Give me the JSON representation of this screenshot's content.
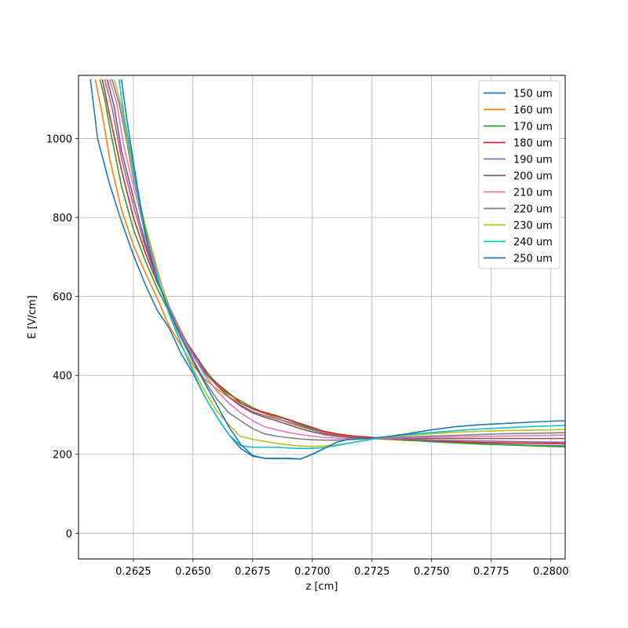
{
  "chart_data": {
    "type": "line",
    "title": "",
    "xlabel": "z [cm]",
    "ylabel": "E [V/cm]",
    "xlim": [
      0.2602,
      0.2806
    ],
    "ylim": [
      -65,
      1160
    ],
    "x_ticks": [
      {
        "value": 0.2625,
        "label": "0.2625"
      },
      {
        "value": 0.265,
        "label": "0.2650"
      },
      {
        "value": 0.2675,
        "label": "0.2675"
      },
      {
        "value": 0.27,
        "label": "0.2700"
      },
      {
        "value": 0.2725,
        "label": "0.2725"
      },
      {
        "value": 0.275,
        "label": "0.2750"
      },
      {
        "value": 0.2775,
        "label": "0.2775"
      },
      {
        "value": 0.28,
        "label": "0.2800"
      }
    ],
    "y_ticks": [
      {
        "value": 0,
        "label": "0"
      },
      {
        "value": 200,
        "label": "200"
      },
      {
        "value": 400,
        "label": "400"
      },
      {
        "value": 600,
        "label": "600"
      },
      {
        "value": 800,
        "label": "800"
      },
      {
        "value": 1000,
        "label": "1000"
      }
    ],
    "grid": true,
    "legend": "top-right",
    "series": [
      {
        "name": "150 um",
        "color": "#1f77b4",
        "x": [
          0.2607,
          0.261,
          0.2615,
          0.262,
          0.2625,
          0.263,
          0.2635,
          0.264,
          0.2645,
          0.265,
          0.2655,
          0.266,
          0.2665,
          0.267,
          0.2675,
          0.268,
          0.2685,
          0.269,
          0.2695,
          0.27,
          0.2705,
          0.271,
          0.2715,
          0.272,
          0.2725,
          0.273,
          0.2735,
          0.274,
          0.275,
          0.276,
          0.277,
          0.278,
          0.279,
          0.28,
          0.2806
        ],
        "y": [
          1150,
          1000,
          885,
          790,
          705,
          630,
          565,
          520,
          455,
          405,
          345,
          295,
          250,
          215,
          195,
          190,
          189,
          190,
          188,
          200,
          215,
          230,
          238,
          240,
          241,
          242,
          240,
          237,
          232,
          230,
          227,
          225,
          223,
          222,
          221
        ]
      },
      {
        "name": "160 um",
        "color": "#ff7f0e",
        "x": [
          0.2609,
          0.2612,
          0.2615,
          0.262,
          0.2625,
          0.263,
          0.2635,
          0.264,
          0.2645,
          0.265,
          0.2655,
          0.266,
          0.2665,
          0.267,
          0.2675,
          0.268,
          0.2685,
          0.269,
          0.2695,
          0.27,
          0.2705,
          0.271,
          0.2715,
          0.272,
          0.2725,
          0.273,
          0.274,
          0.275,
          0.276,
          0.277,
          0.278,
          0.279,
          0.28,
          0.2806
        ],
        "y": [
          1150,
          1060,
          950,
          820,
          730,
          660,
          595,
          525,
          475,
          425,
          390,
          365,
          345,
          330,
          315,
          303,
          292,
          280,
          270,
          262,
          255,
          250,
          245,
          242,
          240,
          238,
          235,
          233,
          231,
          230,
          229,
          228,
          227,
          226
        ]
      },
      {
        "name": "170 um",
        "color": "#2ca02c",
        "x": [
          0.2611,
          0.2613,
          0.2616,
          0.262,
          0.2625,
          0.263,
          0.2635,
          0.264,
          0.2645,
          0.265,
          0.2655,
          0.266,
          0.2665,
          0.267,
          0.2675,
          0.268,
          0.2685,
          0.269,
          0.2695,
          0.27,
          0.2705,
          0.271,
          0.2715,
          0.272,
          0.2725,
          0.273,
          0.274,
          0.275,
          0.276,
          0.277,
          0.278,
          0.279,
          0.28,
          0.2806
        ],
        "y": [
          1150,
          1100,
          1000,
          880,
          770,
          690,
          620,
          560,
          500,
          448,
          405,
          375,
          352,
          335,
          318,
          305,
          296,
          287,
          275,
          265,
          258,
          252,
          248,
          244,
          242,
          240,
          236,
          232,
          229,
          226,
          224,
          222,
          220,
          219
        ]
      },
      {
        "name": "180 um",
        "color": "#d62728",
        "x": [
          0.2612,
          0.2615,
          0.262,
          0.2625,
          0.263,
          0.2635,
          0.264,
          0.2645,
          0.265,
          0.2655,
          0.266,
          0.2665,
          0.267,
          0.2675,
          0.268,
          0.2685,
          0.269,
          0.2695,
          0.27,
          0.2705,
          0.271,
          0.2715,
          0.272,
          0.2725,
          0.273,
          0.274,
          0.275,
          0.276,
          0.277,
          0.278,
          0.279,
          0.28,
          0.2806
        ],
        "y": [
          1150,
          1060,
          920,
          800,
          710,
          635,
          575,
          510,
          455,
          410,
          380,
          355,
          330,
          315,
          306,
          298,
          288,
          278,
          268,
          258,
          252,
          248,
          245,
          243,
          241,
          238,
          235,
          232,
          230,
          229,
          228,
          228,
          227
        ]
      },
      {
        "name": "190 um",
        "color": "#9467bd",
        "x": [
          0.2613,
          0.2616,
          0.262,
          0.2625,
          0.263,
          0.2635,
          0.264,
          0.2645,
          0.265,
          0.2655,
          0.266,
          0.2665,
          0.267,
          0.2675,
          0.268,
          0.2685,
          0.269,
          0.2695,
          0.27,
          0.2705,
          0.271,
          0.2715,
          0.272,
          0.2725,
          0.273,
          0.274,
          0.275,
          0.276,
          0.277,
          0.278,
          0.279,
          0.28,
          0.2806
        ],
        "y": [
          1150,
          1080,
          950,
          830,
          725,
          640,
          565,
          505,
          455,
          412,
          375,
          345,
          325,
          308,
          298,
          290,
          282,
          272,
          262,
          253,
          248,
          244,
          241,
          240,
          239,
          238,
          236,
          235,
          234,
          233,
          232,
          231,
          231
        ]
      },
      {
        "name": "200 um",
        "color": "#8c564b",
        "x": [
          0.2614,
          0.2617,
          0.262,
          0.2625,
          0.263,
          0.2635,
          0.264,
          0.2645,
          0.265,
          0.2655,
          0.266,
          0.2665,
          0.267,
          0.2675,
          0.268,
          0.2685,
          0.269,
          0.2695,
          0.27,
          0.2705,
          0.271,
          0.2715,
          0.272,
          0.2725,
          0.273,
          0.274,
          0.275,
          0.276,
          0.277,
          0.278,
          0.279,
          0.28,
          0.2806
        ],
        "y": [
          1150,
          1080,
          970,
          850,
          735,
          645,
          565,
          505,
          460,
          415,
          375,
          345,
          322,
          305,
          294,
          285,
          275,
          265,
          257,
          250,
          246,
          243,
          241,
          240,
          240,
          240,
          240,
          240,
          240,
          240,
          240,
          240,
          240
        ]
      },
      {
        "name": "210 um",
        "color": "#e377c2",
        "x": [
          0.2615,
          0.2618,
          0.2621,
          0.2625,
          0.263,
          0.2635,
          0.264,
          0.2645,
          0.265,
          0.2655,
          0.266,
          0.2665,
          0.267,
          0.2675,
          0.268,
          0.2685,
          0.269,
          0.2695,
          0.27,
          0.2705,
          0.271,
          0.2715,
          0.272,
          0.2725,
          0.273,
          0.274,
          0.275,
          0.276,
          0.277,
          0.278,
          0.279,
          0.28,
          0.2806
        ],
        "y": [
          1150,
          1090,
          980,
          880,
          760,
          660,
          575,
          505,
          450,
          400,
          360,
          330,
          305,
          285,
          270,
          262,
          255,
          250,
          246,
          243,
          241,
          240,
          240,
          240,
          241,
          242,
          243,
          244,
          245,
          246,
          247,
          248,
          249
        ]
      },
      {
        "name": "220 um",
        "color": "#7f7f7f",
        "x": [
          0.2616,
          0.2619,
          0.2622,
          0.2625,
          0.263,
          0.2635,
          0.264,
          0.2645,
          0.265,
          0.2655,
          0.266,
          0.2665,
          0.267,
          0.2675,
          0.268,
          0.2685,
          0.269,
          0.2695,
          0.27,
          0.2705,
          0.271,
          0.2715,
          0.272,
          0.2725,
          0.273,
          0.274,
          0.275,
          0.276,
          0.277,
          0.278,
          0.279,
          0.28,
          0.2806
        ],
        "y": [
          1150,
          1090,
          1000,
          900,
          770,
          665,
          570,
          500,
          440,
          385,
          340,
          305,
          285,
          265,
          252,
          246,
          242,
          239,
          237,
          236,
          236,
          237,
          238,
          240,
          242,
          244,
          246,
          248,
          250,
          252,
          253,
          254,
          255
        ]
      },
      {
        "name": "230 um",
        "color": "#bcbd22",
        "x": [
          0.2617,
          0.262,
          0.2623,
          0.2626,
          0.263,
          0.2635,
          0.264,
          0.2645,
          0.265,
          0.2655,
          0.266,
          0.2665,
          0.267,
          0.2675,
          0.268,
          0.2685,
          0.269,
          0.2695,
          0.27,
          0.2705,
          0.271,
          0.2715,
          0.272,
          0.2725,
          0.273,
          0.274,
          0.275,
          0.276,
          0.277,
          0.278,
          0.279,
          0.28,
          0.2806
        ],
        "y": [
          1150,
          1080,
          980,
          880,
          780,
          670,
          565,
          480,
          415,
          360,
          310,
          275,
          245,
          238,
          233,
          228,
          224,
          221,
          220,
          221,
          224,
          228,
          233,
          238,
          243,
          248,
          252,
          256,
          258,
          260,
          261,
          262,
          263
        ]
      },
      {
        "name": "240 um",
        "color": "#17becf",
        "x": [
          0.2619,
          0.2621,
          0.2624,
          0.2627,
          0.263,
          0.2635,
          0.264,
          0.2645,
          0.265,
          0.2655,
          0.266,
          0.2665,
          0.267,
          0.2675,
          0.268,
          0.2685,
          0.269,
          0.2695,
          0.27,
          0.2705,
          0.271,
          0.2715,
          0.272,
          0.2725,
          0.273,
          0.274,
          0.275,
          0.276,
          0.277,
          0.278,
          0.279,
          0.28,
          0.2806
        ],
        "y": [
          1150,
          1060,
          960,
          850,
          750,
          650,
          555,
          480,
          410,
          345,
          295,
          250,
          222,
          218,
          218,
          218,
          216,
          215,
          215,
          217,
          222,
          228,
          233,
          238,
          244,
          250,
          255,
          260,
          264,
          267,
          270,
          272,
          273
        ]
      },
      {
        "name": "250 um",
        "color": "#1f77b4",
        "x": [
          0.262,
          0.2622,
          0.2625,
          0.2628,
          0.2631,
          0.2635,
          0.264,
          0.2645,
          0.265,
          0.2655,
          0.266,
          0.2665,
          0.267,
          0.2675,
          0.268,
          0.2685,
          0.269,
          0.2695,
          0.27,
          0.2705,
          0.271,
          0.2715,
          0.272,
          0.2725,
          0.273,
          0.274,
          0.275,
          0.276,
          0.277,
          0.278,
          0.279,
          0.28,
          0.2806
        ],
        "y": [
          1150,
          1060,
          940,
          830,
          730,
          640,
          565,
          495,
          435,
          380,
          325,
          270,
          225,
          197,
          190,
          190,
          189,
          188,
          200,
          215,
          230,
          238,
          240,
          241,
          244,
          252,
          262,
          270,
          275,
          278,
          281,
          284,
          285
        ]
      }
    ]
  }
}
